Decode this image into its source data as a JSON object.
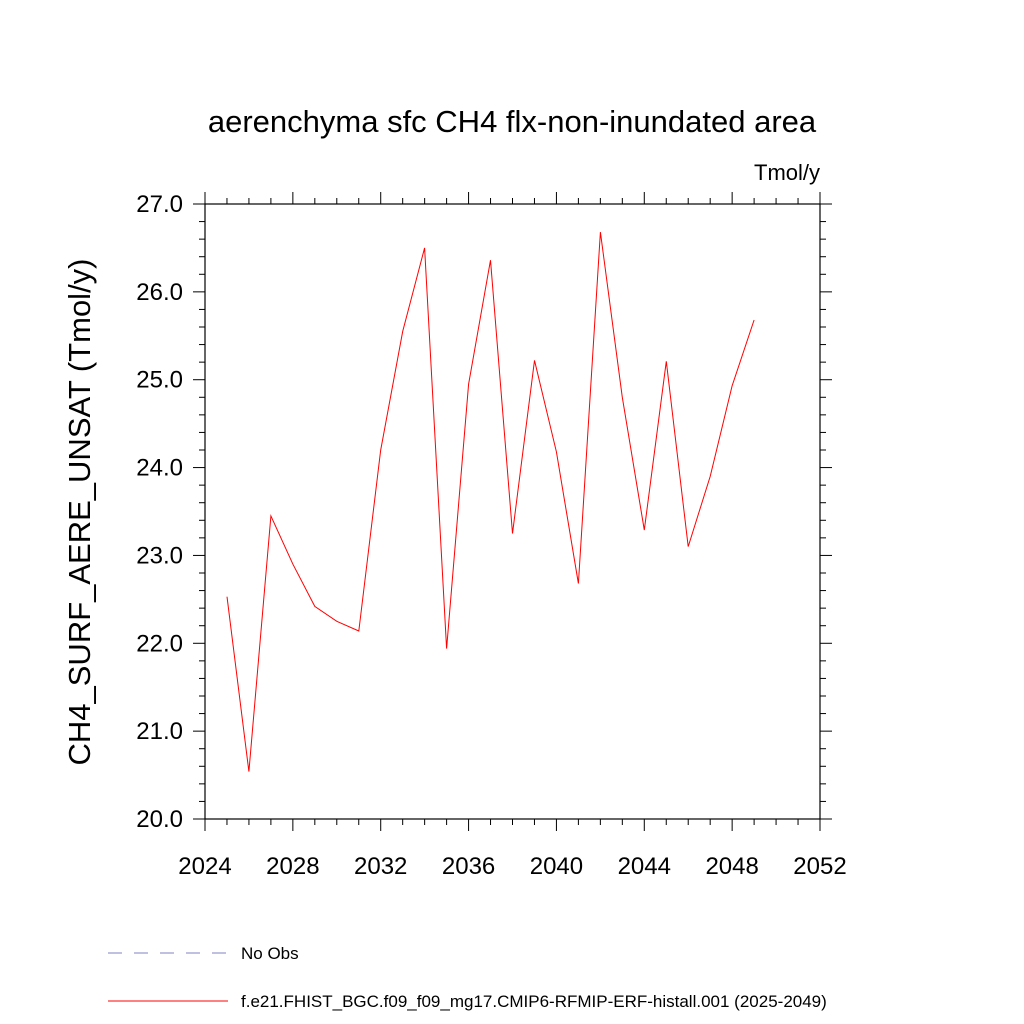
{
  "chart_data": {
    "type": "line",
    "title": "aerenchyma sfc CH4 flx-non-inundated area",
    "units_label": "Tmol/y",
    "ylabel": "CH4_SURF_AERE_UNSAT  (Tmol/y)",
    "xlabel": "",
    "xlim": [
      2024,
      2052
    ],
    "ylim": [
      20.0,
      27.0
    ],
    "x_ticks": [
      2024,
      2028,
      2032,
      2036,
      2040,
      2044,
      2048,
      2052
    ],
    "y_ticks": [
      20.0,
      21.0,
      22.0,
      23.0,
      24.0,
      25.0,
      26.0,
      27.0
    ],
    "x_tick_labels": [
      "2024",
      "2028",
      "2032",
      "2036",
      "2040",
      "2044",
      "2048",
      "2052"
    ],
    "y_tick_labels": [
      "20.0",
      "21.0",
      "22.0",
      "23.0",
      "24.0",
      "25.0",
      "26.0",
      "27.0"
    ],
    "grid": false,
    "legend_position": "bottom-left",
    "series": [
      {
        "name": "f.e21.FHIST_BGC.f09_f09_mg17.CMIP6-RFMIP-ERF-histall.001 (2025-2049)",
        "color": "#ff0000",
        "style": "solid",
        "x": [
          2025,
          2026,
          2027,
          2028,
          2029,
          2030,
          2031,
          2032,
          2033,
          2034,
          2035,
          2036,
          2037,
          2038,
          2039,
          2040,
          2041,
          2042,
          2043,
          2044,
          2045,
          2046,
          2047,
          2048,
          2049
        ],
        "y": [
          22.53,
          20.54,
          23.45,
          22.9,
          22.42,
          22.25,
          22.14,
          24.2,
          25.55,
          26.5,
          21.94,
          24.95,
          26.36,
          23.25,
          25.22,
          24.18,
          22.68,
          26.68,
          24.8,
          23.29,
          25.21,
          23.1,
          23.9,
          24.93,
          25.68
        ]
      },
      {
        "name": "No Obs",
        "color": "#8080c0",
        "style": "dashed",
        "x": [],
        "y": []
      }
    ]
  }
}
